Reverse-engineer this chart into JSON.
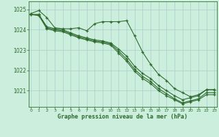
{
  "x": [
    0,
    1,
    2,
    3,
    4,
    5,
    6,
    7,
    8,
    9,
    10,
    11,
    12,
    13,
    14,
    15,
    16,
    17,
    18,
    19,
    20,
    21,
    22,
    23
  ],
  "series1": [
    1024.8,
    1024.95,
    1024.6,
    1024.1,
    1024.05,
    1024.05,
    1024.1,
    1023.95,
    1024.3,
    1024.4,
    1024.4,
    1024.4,
    1024.45,
    1023.7,
    1022.9,
    1022.3,
    1021.8,
    1021.5,
    1021.1,
    1020.9,
    1020.7,
    1020.8,
    1021.05,
    1021.05
  ],
  "series2": [
    1024.75,
    1024.75,
    1024.15,
    1024.05,
    1024.0,
    1023.85,
    1023.7,
    1023.6,
    1023.5,
    1023.45,
    1023.35,
    1023.05,
    1022.7,
    1022.2,
    1021.85,
    1021.6,
    1021.25,
    1021.0,
    1020.75,
    1020.55,
    1020.65,
    1020.75,
    1021.05,
    1021.05
  ],
  "series3": [
    1024.75,
    1024.75,
    1024.1,
    1024.0,
    1023.95,
    1023.8,
    1023.65,
    1023.55,
    1023.45,
    1023.4,
    1023.3,
    1022.95,
    1022.55,
    1022.05,
    1021.7,
    1021.45,
    1021.1,
    1020.85,
    1020.6,
    1020.4,
    1020.5,
    1020.6,
    1020.9,
    1020.9
  ],
  "series4": [
    1024.75,
    1024.7,
    1024.05,
    1023.95,
    1023.9,
    1023.75,
    1023.6,
    1023.5,
    1023.4,
    1023.35,
    1023.25,
    1022.85,
    1022.45,
    1021.95,
    1021.6,
    1021.35,
    1021.0,
    1020.75,
    1020.55,
    1020.35,
    1020.45,
    1020.55,
    1020.8,
    1020.8
  ],
  "line_color": "#2d6a2d",
  "bg_color": "#cceedd",
  "grid_color": "#aacccc",
  "axis_color": "#2d6a2d",
  "label_color": "#2d6a2d",
  "xlabel": "Graphe pression niveau de la mer (hPa)",
  "ylim_min": 1020.2,
  "ylim_max": 1025.4,
  "yticks": [
    1021,
    1022,
    1023,
    1024,
    1025
  ],
  "xticks": [
    0,
    1,
    2,
    3,
    4,
    5,
    6,
    7,
    8,
    9,
    10,
    11,
    12,
    13,
    14,
    15,
    16,
    17,
    18,
    19,
    20,
    21,
    22,
    23
  ]
}
